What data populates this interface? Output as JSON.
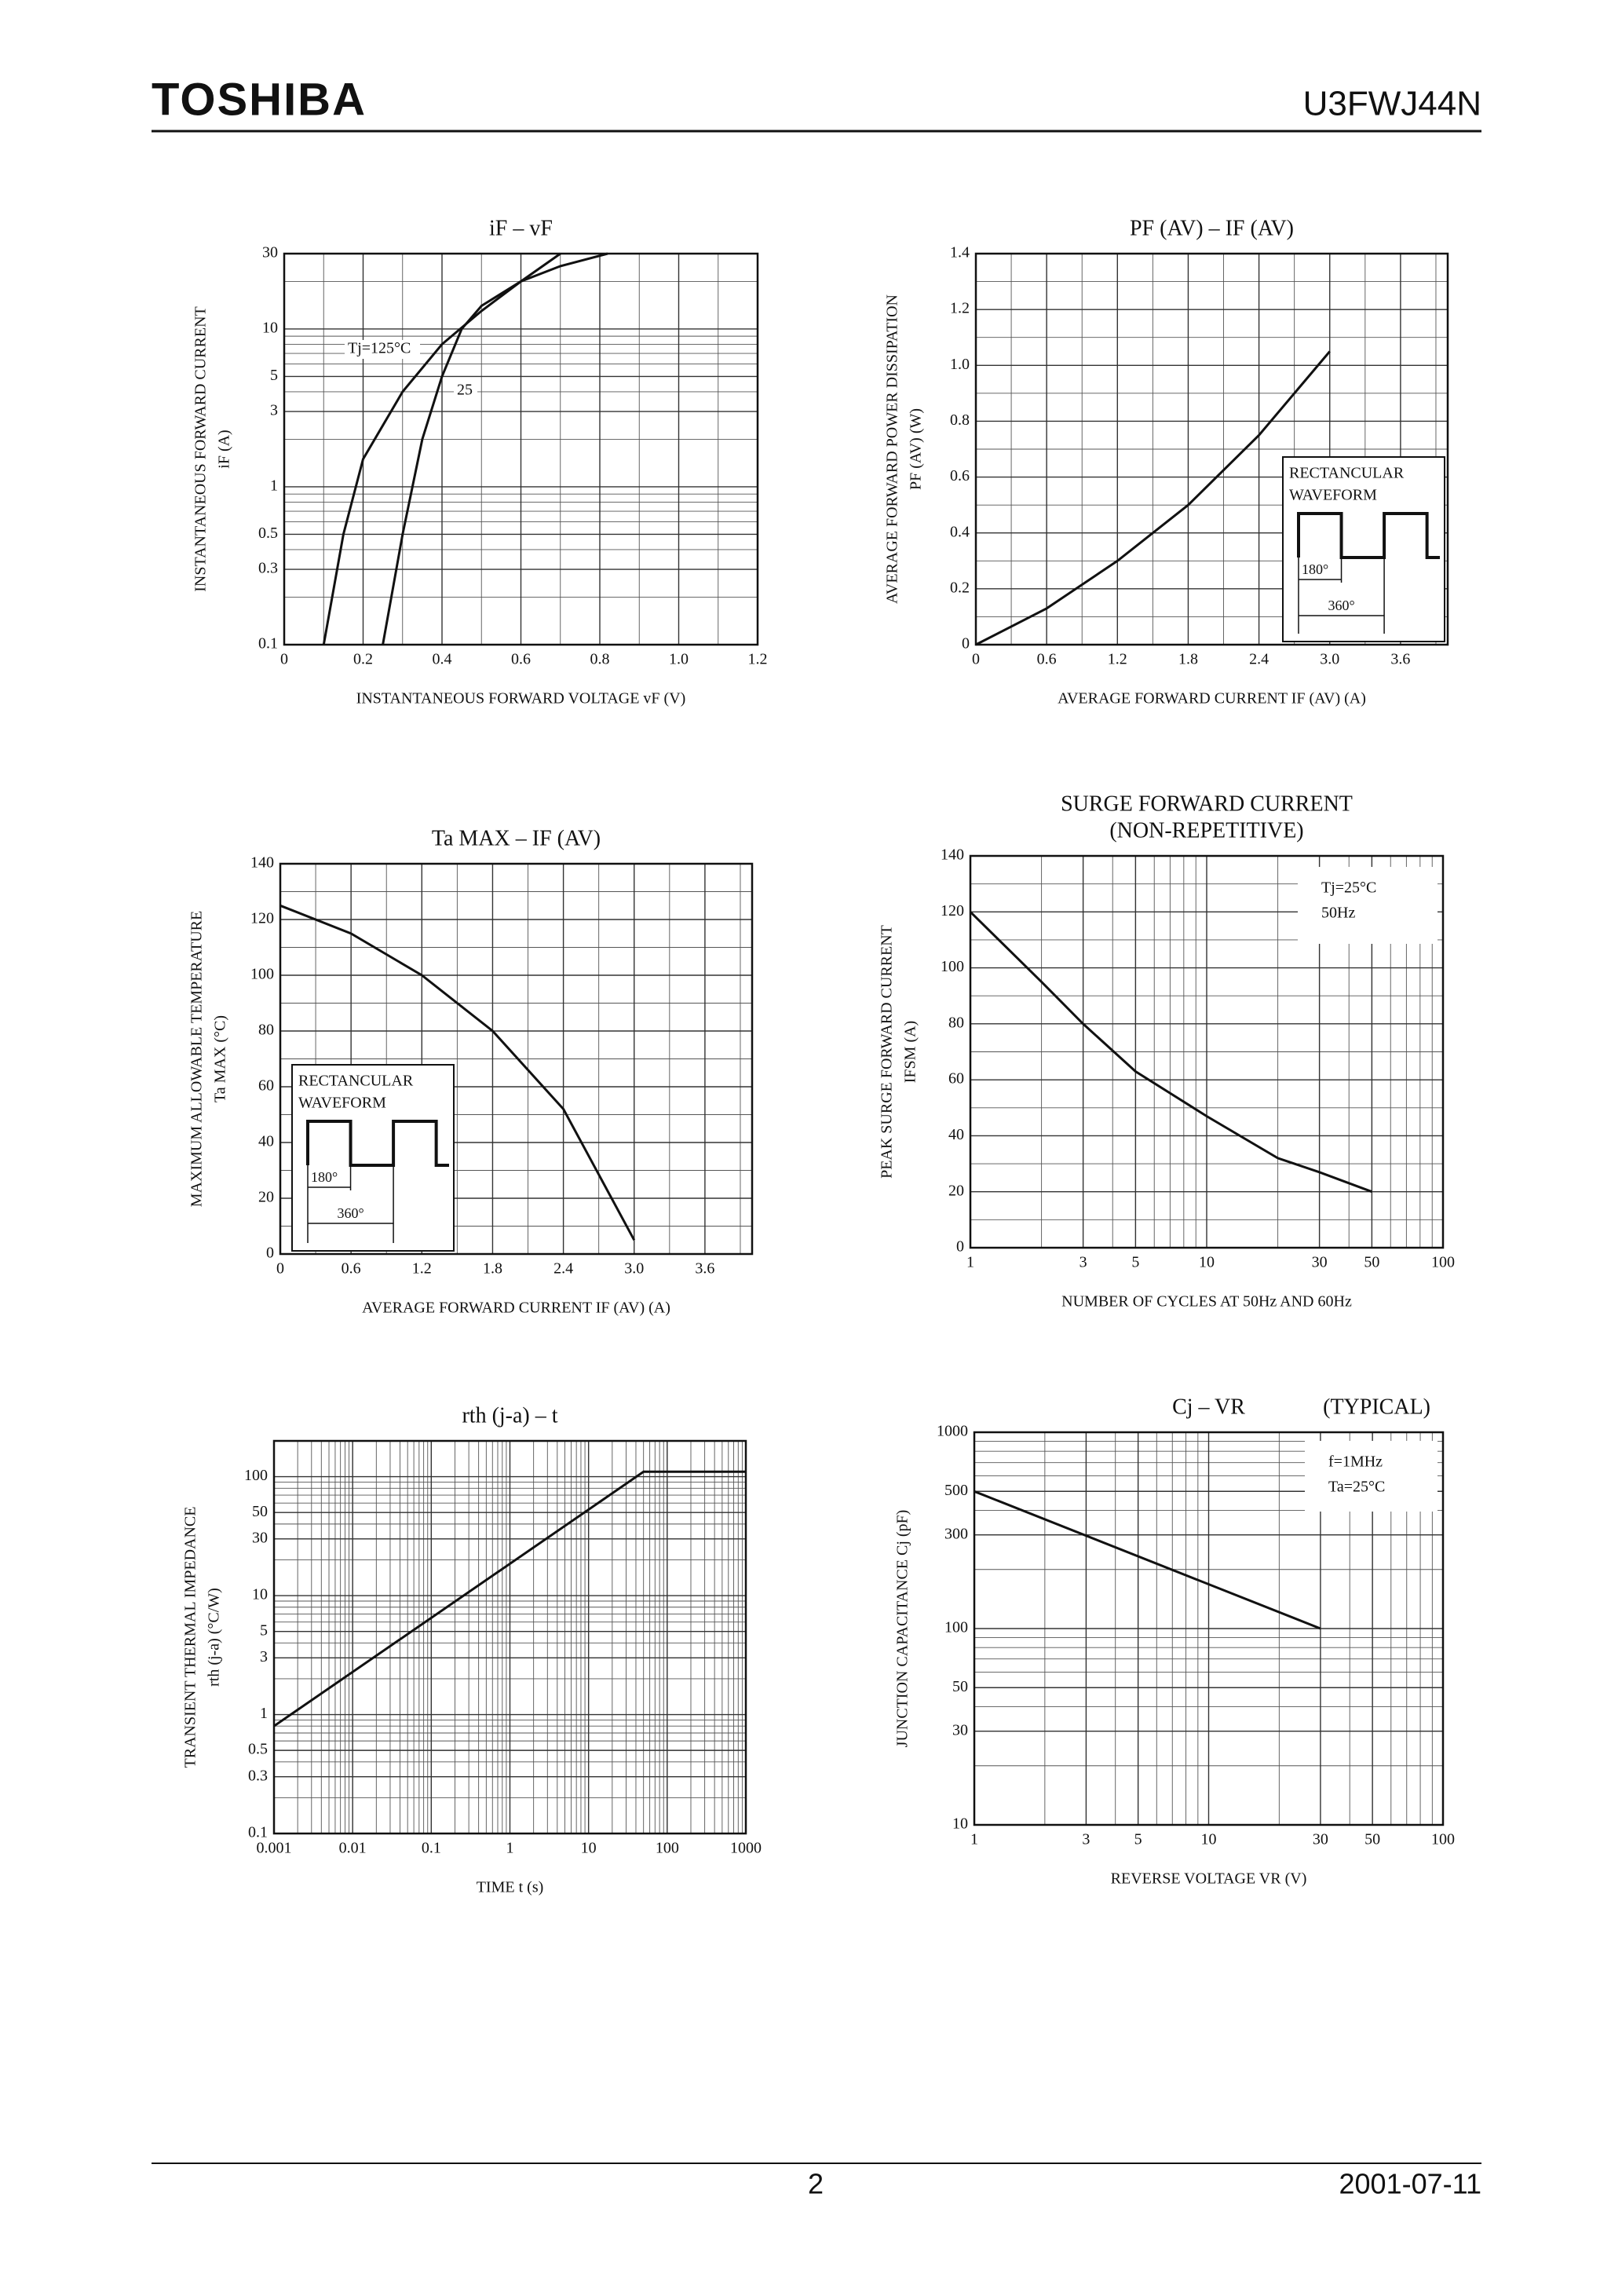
{
  "header": {
    "brand": "TOSHIBA",
    "part": "U3FWJ44N"
  },
  "footer": {
    "page": "2",
    "date": "2001-07-11"
  },
  "chart_data": [
    {
      "type": "line",
      "title": [
        "iF – vF"
      ],
      "xlabel": "INSTANTANEOUS FORWARD VOLTAGE  vF  (V)",
      "ylabel": [
        "INSTANTANEOUS FORWARD CURRENT",
        "iF  (A)"
      ],
      "xlim": [
        0,
        1.2
      ],
      "xticks": [
        0,
        0.2,
        0.4,
        0.6,
        0.8,
        {
          "value": 1,
          "label": "1.0"
        },
        1.2
      ],
      "ylim": [
        0.1,
        30
      ],
      "ylog": true,
      "yticks": [
        0.1,
        0.3,
        0.5,
        1,
        3,
        5,
        10,
        30
      ],
      "grid": true,
      "series": [
        {
          "name": "Tj=125°C",
          "color": "#111111",
          "x": [
            0.1,
            0.15,
            0.2,
            0.3,
            0.4,
            0.5,
            0.6,
            0.7
          ],
          "values": [
            0.1,
            0.5,
            1.5,
            4,
            8,
            13,
            20,
            30
          ]
        },
        {
          "name": "25",
          "color": "#111111",
          "x": [
            0.25,
            0.3,
            0.35,
            0.4,
            0.45,
            0.5,
            0.6,
            0.7,
            0.82
          ],
          "values": [
            0.1,
            0.5,
            2,
            5,
            10,
            14,
            20,
            25,
            30
          ]
        }
      ]
    },
    {
      "type": "line",
      "title": [
        "PF (AV) – IF (AV)"
      ],
      "xlabel": "AVERAGE FORWARD CURRENT  IF (AV)  (A)",
      "ylabel": [
        "AVERAGE FORWARD POWER DISSIPATION",
        "PF (AV)  (W)"
      ],
      "xlim": [
        0,
        4
      ],
      "xticks": [
        0,
        0.6,
        1.2,
        1.8,
        2.4,
        {
          "value": 3,
          "label": "3.0"
        },
        3.6
      ],
      "ylim": [
        0,
        1.4
      ],
      "yticks": [
        0,
        0.2,
        0.4,
        0.6,
        0.8,
        {
          "value": 1,
          "label": "1.0"
        },
        1.2,
        1.4
      ],
      "grid": true,
      "inset": {
        "text": [
          "RECTANCULAR",
          "WAVEFORM"
        ],
        "labels": [
          "180°",
          "360°"
        ]
      },
      "series": [
        {
          "color": "#111111",
          "x": [
            0,
            0.6,
            1.2,
            1.8,
            2.4,
            3.0
          ],
          "values": [
            0,
            0.13,
            0.3,
            0.5,
            0.75,
            1.05
          ]
        }
      ]
    },
    {
      "type": "line",
      "title": [
        "Ta MAX – IF (AV)"
      ],
      "xlabel": "AVERAGE FORWARD CURRENT  IF (AV)  (A)",
      "ylabel": [
        "MAXIMUM ALLOWABLE TEMPERATURE",
        "Ta MAX  (°C)"
      ],
      "xlim": [
        0,
        4
      ],
      "xticks": [
        0,
        0.6,
        1.2,
        1.8,
        2.4,
        {
          "value": 3,
          "label": "3.0"
        },
        3.6
      ],
      "ylim": [
        0,
        140
      ],
      "yticks": [
        0,
        20,
        40,
        60,
        80,
        100,
        120,
        140
      ],
      "grid": true,
      "inset": {
        "text": [
          "RECTANCULAR",
          "WAVEFORM"
        ],
        "labels": [
          "180°",
          "360°"
        ]
      },
      "series": [
        {
          "color": "#111111",
          "x": [
            0,
            0.6,
            1.2,
            1.8,
            2.4,
            3.0
          ],
          "values": [
            125,
            115,
            100,
            80,
            52,
            5
          ]
        }
      ]
    },
    {
      "type": "line",
      "title": [
        "SURGE FORWARD CURRENT",
        "(NON-REPETITIVE)"
      ],
      "xlabel": "NUMBER OF CYCLES AT 50Hz AND 60Hz",
      "ylabel": [
        "PEAK SURGE FORWARD CURRENT",
        "IFSM  (A)"
      ],
      "xlim": [
        1,
        100
      ],
      "xlog": true,
      "xticks": [
        1,
        3,
        5,
        10,
        30,
        50,
        100
      ],
      "ylim": [
        0,
        140
      ],
      "yticks": [
        0,
        20,
        40,
        60,
        80,
        100,
        120,
        140
      ],
      "grid": true,
      "notes": [
        "Tj=25°C",
        "50Hz"
      ],
      "series": [
        {
          "color": "#111111",
          "x": [
            1,
            2,
            3,
            5,
            10,
            20,
            30,
            50
          ],
          "values": [
            120,
            95,
            80,
            63,
            47,
            32,
            27,
            20
          ]
        }
      ]
    },
    {
      "type": "line",
      "title": [
        "rth (j-a) – t"
      ],
      "xlabel": "TIME  t  (s)",
      "ylabel": [
        "TRANSIENT THERMAL IMPEDANCE",
        "rth (j-a)  (°C/W)"
      ],
      "xlim": [
        0.001,
        1000
      ],
      "xlog": true,
      "xticks": [
        0.001,
        0.01,
        0.1,
        1,
        10,
        100,
        1000
      ],
      "ylim": [
        0.1,
        200
      ],
      "ylog": true,
      "yticks": [
        0.1,
        0.3,
        0.5,
        1,
        3,
        5,
        10,
        30,
        50,
        100
      ],
      "grid": true,
      "series": [
        {
          "color": "#111111",
          "x": [
            0.001,
            50,
            1000
          ],
          "values": [
            0.8,
            110,
            110
          ]
        }
      ]
    },
    {
      "type": "line",
      "title": [
        "Cj – VR"
      ],
      "annotation": "(TYPICAL)",
      "xlabel": "REVERSE VOLTAGE  VR  (V)",
      "ylabel": [
        "JUNCTION CAPACITANCE  Cj  (pF)"
      ],
      "xlim": [
        1,
        100
      ],
      "xlog": true,
      "xticks": [
        1,
        3,
        5,
        10,
        30,
        50,
        100
      ],
      "ylim": [
        10,
        1000
      ],
      "ylog": true,
      "yticks": [
        10,
        30,
        50,
        100,
        300,
        500,
        1000
      ],
      "grid": true,
      "notes": [
        "f=1MHz",
        "Ta=25°C"
      ],
      "series": [
        {
          "color": "#111111",
          "x": [
            1,
            30
          ],
          "values": [
            500,
            100
          ]
        }
      ]
    }
  ]
}
